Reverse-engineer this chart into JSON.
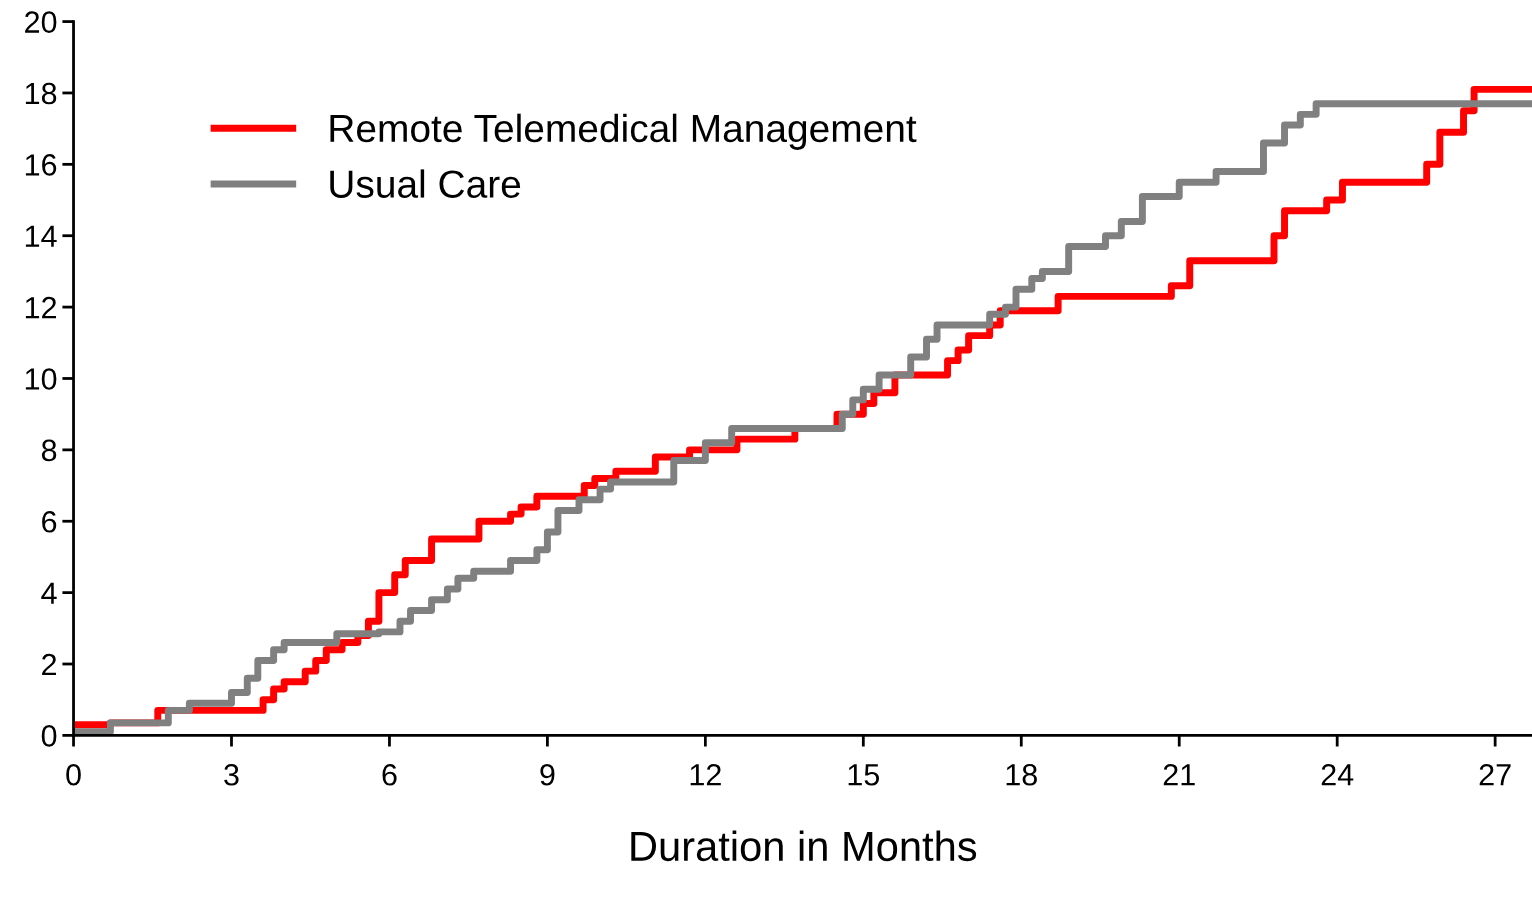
{
  "chart_data": {
    "type": "step",
    "xlabel": "Duration in Months",
    "xlim": [
      0,
      27.7
    ],
    "ylim": [
      0,
      20
    ],
    "xticks": [
      0,
      3,
      6,
      9,
      12,
      15,
      18,
      21,
      24,
      27
    ],
    "yticks": [
      0,
      2,
      4,
      6,
      8,
      10,
      12,
      14,
      16,
      18,
      20
    ],
    "grid": false,
    "legend": "top left",
    "line_style": "solid",
    "marker": "none",
    "series": [
      {
        "name": "Remote Telemedical Management",
        "color": "#ff0000",
        "x": [
          0,
          0.7,
          1.6,
          3.6,
          3.8,
          4.0,
          4.4,
          4.6,
          4.8,
          5.1,
          5.4,
          5.6,
          5.8,
          6.1,
          6.3,
          6.8,
          7.7,
          8.3,
          8.5,
          8.8,
          9.7,
          9.9,
          10.3,
          11.05,
          11.7,
          12.6,
          13.7,
          14.5,
          15.0,
          15.2,
          15.6,
          16.6,
          16.8,
          17.0,
          17.4,
          17.6,
          18.7,
          20.85,
          21.2,
          22.8,
          23.0,
          23.8,
          24.1,
          25.7,
          25.95,
          26.4,
          26.6,
          27.7
        ],
        "values": [
          0.3,
          0.35,
          0.7,
          1.0,
          1.3,
          1.5,
          1.8,
          2.1,
          2.4,
          2.6,
          2.8,
          3.2,
          4.0,
          4.5,
          4.9,
          5.5,
          6.0,
          6.2,
          6.4,
          6.7,
          7.0,
          7.2,
          7.4,
          7.8,
          8.0,
          8.3,
          8.6,
          9.0,
          9.3,
          9.6,
          10.1,
          10.5,
          10.8,
          11.2,
          11.5,
          11.9,
          12.3,
          12.6,
          13.3,
          14.0,
          14.7,
          15.0,
          15.5,
          16.0,
          16.9,
          17.5,
          18.1,
          18.1
        ]
      },
      {
        "name": "Usual Care",
        "color": "#808080",
        "x": [
          0,
          0.7,
          1.8,
          2.2,
          3.0,
          3.3,
          3.5,
          3.8,
          4.0,
          5.0,
          5.8,
          6.2,
          6.4,
          6.8,
          7.1,
          7.3,
          7.6,
          8.3,
          8.8,
          9.0,
          9.2,
          9.6,
          10.0,
          10.2,
          11.4,
          12.0,
          12.5,
          14.6,
          14.8,
          15.0,
          15.3,
          15.9,
          16.2,
          16.4,
          17.4,
          17.7,
          17.9,
          18.2,
          18.4,
          18.9,
          19.6,
          19.9,
          20.3,
          21.0,
          21.7,
          22.6,
          23.0,
          23.3,
          23.6,
          27.7
        ],
        "values": [
          0.1,
          0.35,
          0.7,
          0.9,
          1.2,
          1.6,
          2.1,
          2.4,
          2.6,
          2.85,
          2.9,
          3.2,
          3.5,
          3.8,
          4.1,
          4.4,
          4.6,
          4.9,
          5.2,
          5.7,
          6.3,
          6.6,
          6.9,
          7.1,
          7.7,
          8.2,
          8.6,
          9.0,
          9.4,
          9.7,
          10.1,
          10.6,
          11.1,
          11.5,
          11.8,
          12.0,
          12.5,
          12.8,
          13.0,
          13.7,
          14.0,
          14.4,
          15.1,
          15.5,
          15.8,
          16.6,
          17.1,
          17.4,
          17.7,
          17.7
        ]
      }
    ]
  }
}
